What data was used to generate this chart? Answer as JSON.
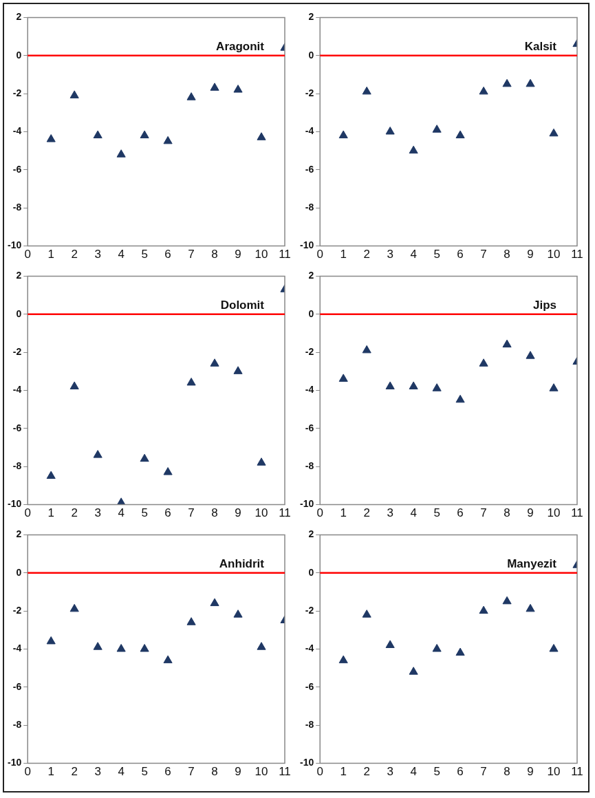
{
  "chart_data": [
    {
      "type": "scatter",
      "title": "Aragonit",
      "x": [
        1,
        2,
        3,
        4,
        5,
        6,
        7,
        8,
        9,
        10,
        11
      ],
      "values": [
        -4.4,
        -2.1,
        -4.2,
        -5.2,
        -4.2,
        -4.5,
        -2.2,
        -1.7,
        -1.8,
        -4.3,
        0.4
      ],
      "color": "#1f3864",
      "marker": "triangle",
      "xlim": [
        0,
        11
      ],
      "xticks": [
        0,
        1,
        2,
        3,
        4,
        5,
        6,
        7,
        8,
        9,
        10,
        11
      ],
      "ylim": [
        -10,
        2
      ],
      "yticks": [
        -10,
        -8,
        -6,
        -4,
        -2,
        0,
        2
      ],
      "ref_lines": [
        {
          "axis": "y",
          "value": 0,
          "color": "#ff0000"
        }
      ]
    },
    {
      "type": "scatter",
      "title": "Kalsit",
      "x": [
        1,
        2,
        3,
        4,
        5,
        6,
        7,
        8,
        9,
        10,
        11
      ],
      "values": [
        -4.2,
        -1.9,
        -4.0,
        -5.0,
        -3.9,
        -4.2,
        -1.9,
        -1.5,
        -1.5,
        -4.1,
        0.6
      ],
      "color": "#1f3864",
      "marker": "triangle",
      "xlim": [
        0,
        11
      ],
      "xticks": [
        0,
        1,
        2,
        3,
        4,
        5,
        6,
        7,
        8,
        9,
        10,
        11
      ],
      "ylim": [
        -10,
        2
      ],
      "yticks": [
        -10,
        -8,
        -6,
        -4,
        -2,
        0,
        2
      ],
      "ref_lines": [
        {
          "axis": "y",
          "value": 0,
          "color": "#ff0000"
        }
      ]
    },
    {
      "type": "scatter",
      "title": "Dolomit",
      "x": [
        1,
        2,
        3,
        4,
        5,
        6,
        7,
        8,
        9,
        10,
        11
      ],
      "values": [
        -8.5,
        -3.8,
        -7.4,
        -9.9,
        -7.6,
        -8.3,
        -3.6,
        -2.6,
        -3.0,
        -7.8,
        1.3
      ],
      "color": "#1f3864",
      "marker": "triangle",
      "xlim": [
        0,
        11
      ],
      "xticks": [
        0,
        1,
        2,
        3,
        4,
        5,
        6,
        7,
        8,
        9,
        10,
        11
      ],
      "ylim": [
        -10,
        2
      ],
      "yticks": [
        -10,
        -8,
        -6,
        -4,
        -2,
        0,
        2
      ],
      "ref_lines": [
        {
          "axis": "y",
          "value": 0,
          "color": "#ff0000"
        }
      ]
    },
    {
      "type": "scatter",
      "title": "Jips",
      "x": [
        1,
        2,
        3,
        4,
        5,
        6,
        7,
        8,
        9,
        10,
        11
      ],
      "values": [
        -3.4,
        -1.9,
        -3.8,
        -3.8,
        -3.9,
        -4.5,
        -2.6,
        -1.6,
        -2.2,
        -3.9,
        -2.5
      ],
      "color": "#1f3864",
      "marker": "triangle",
      "xlim": [
        0,
        11
      ],
      "xticks": [
        0,
        1,
        2,
        3,
        4,
        5,
        6,
        7,
        8,
        9,
        10,
        11
      ],
      "ylim": [
        -10,
        2
      ],
      "yticks": [
        -10,
        -8,
        -6,
        -4,
        -2,
        0,
        2
      ],
      "ref_lines": [
        {
          "axis": "y",
          "value": 0,
          "color": "#ff0000"
        }
      ]
    },
    {
      "type": "scatter",
      "title": "Anhidrit",
      "x": [
        1,
        2,
        3,
        4,
        5,
        6,
        7,
        8,
        9,
        10,
        11
      ],
      "values": [
        -3.6,
        -1.9,
        -3.9,
        -4.0,
        -4.0,
        -4.6,
        -2.6,
        -1.6,
        -2.2,
        -3.9,
        -2.5
      ],
      "color": "#1f3864",
      "marker": "triangle",
      "xlim": [
        0,
        11
      ],
      "xticks": [
        0,
        1,
        2,
        3,
        4,
        5,
        6,
        7,
        8,
        9,
        10,
        11
      ],
      "ylim": [
        -10,
        2
      ],
      "yticks": [
        -10,
        -8,
        -6,
        -4,
        -2,
        0,
        2
      ],
      "ref_lines": [
        {
          "axis": "y",
          "value": 0,
          "color": "#ff0000"
        }
      ]
    },
    {
      "type": "scatter",
      "title": "Manyezit",
      "x": [
        1,
        2,
        3,
        4,
        5,
        6,
        7,
        8,
        9,
        10,
        11
      ],
      "values": [
        -4.6,
        -2.2,
        -3.8,
        -5.2,
        -4.0,
        -4.2,
        -2.0,
        -1.5,
        -1.9,
        -4.0,
        0.4
      ],
      "color": "#1f3864",
      "marker": "triangle",
      "xlim": [
        0,
        11
      ],
      "xticks": [
        0,
        1,
        2,
        3,
        4,
        5,
        6,
        7,
        8,
        9,
        10,
        11
      ],
      "ylim": [
        -10,
        2
      ],
      "yticks": [
        -10,
        -8,
        -6,
        -4,
        -2,
        0,
        2
      ],
      "ref_lines": [
        {
          "axis": "y",
          "value": 0,
          "color": "#ff0000"
        }
      ]
    }
  ]
}
